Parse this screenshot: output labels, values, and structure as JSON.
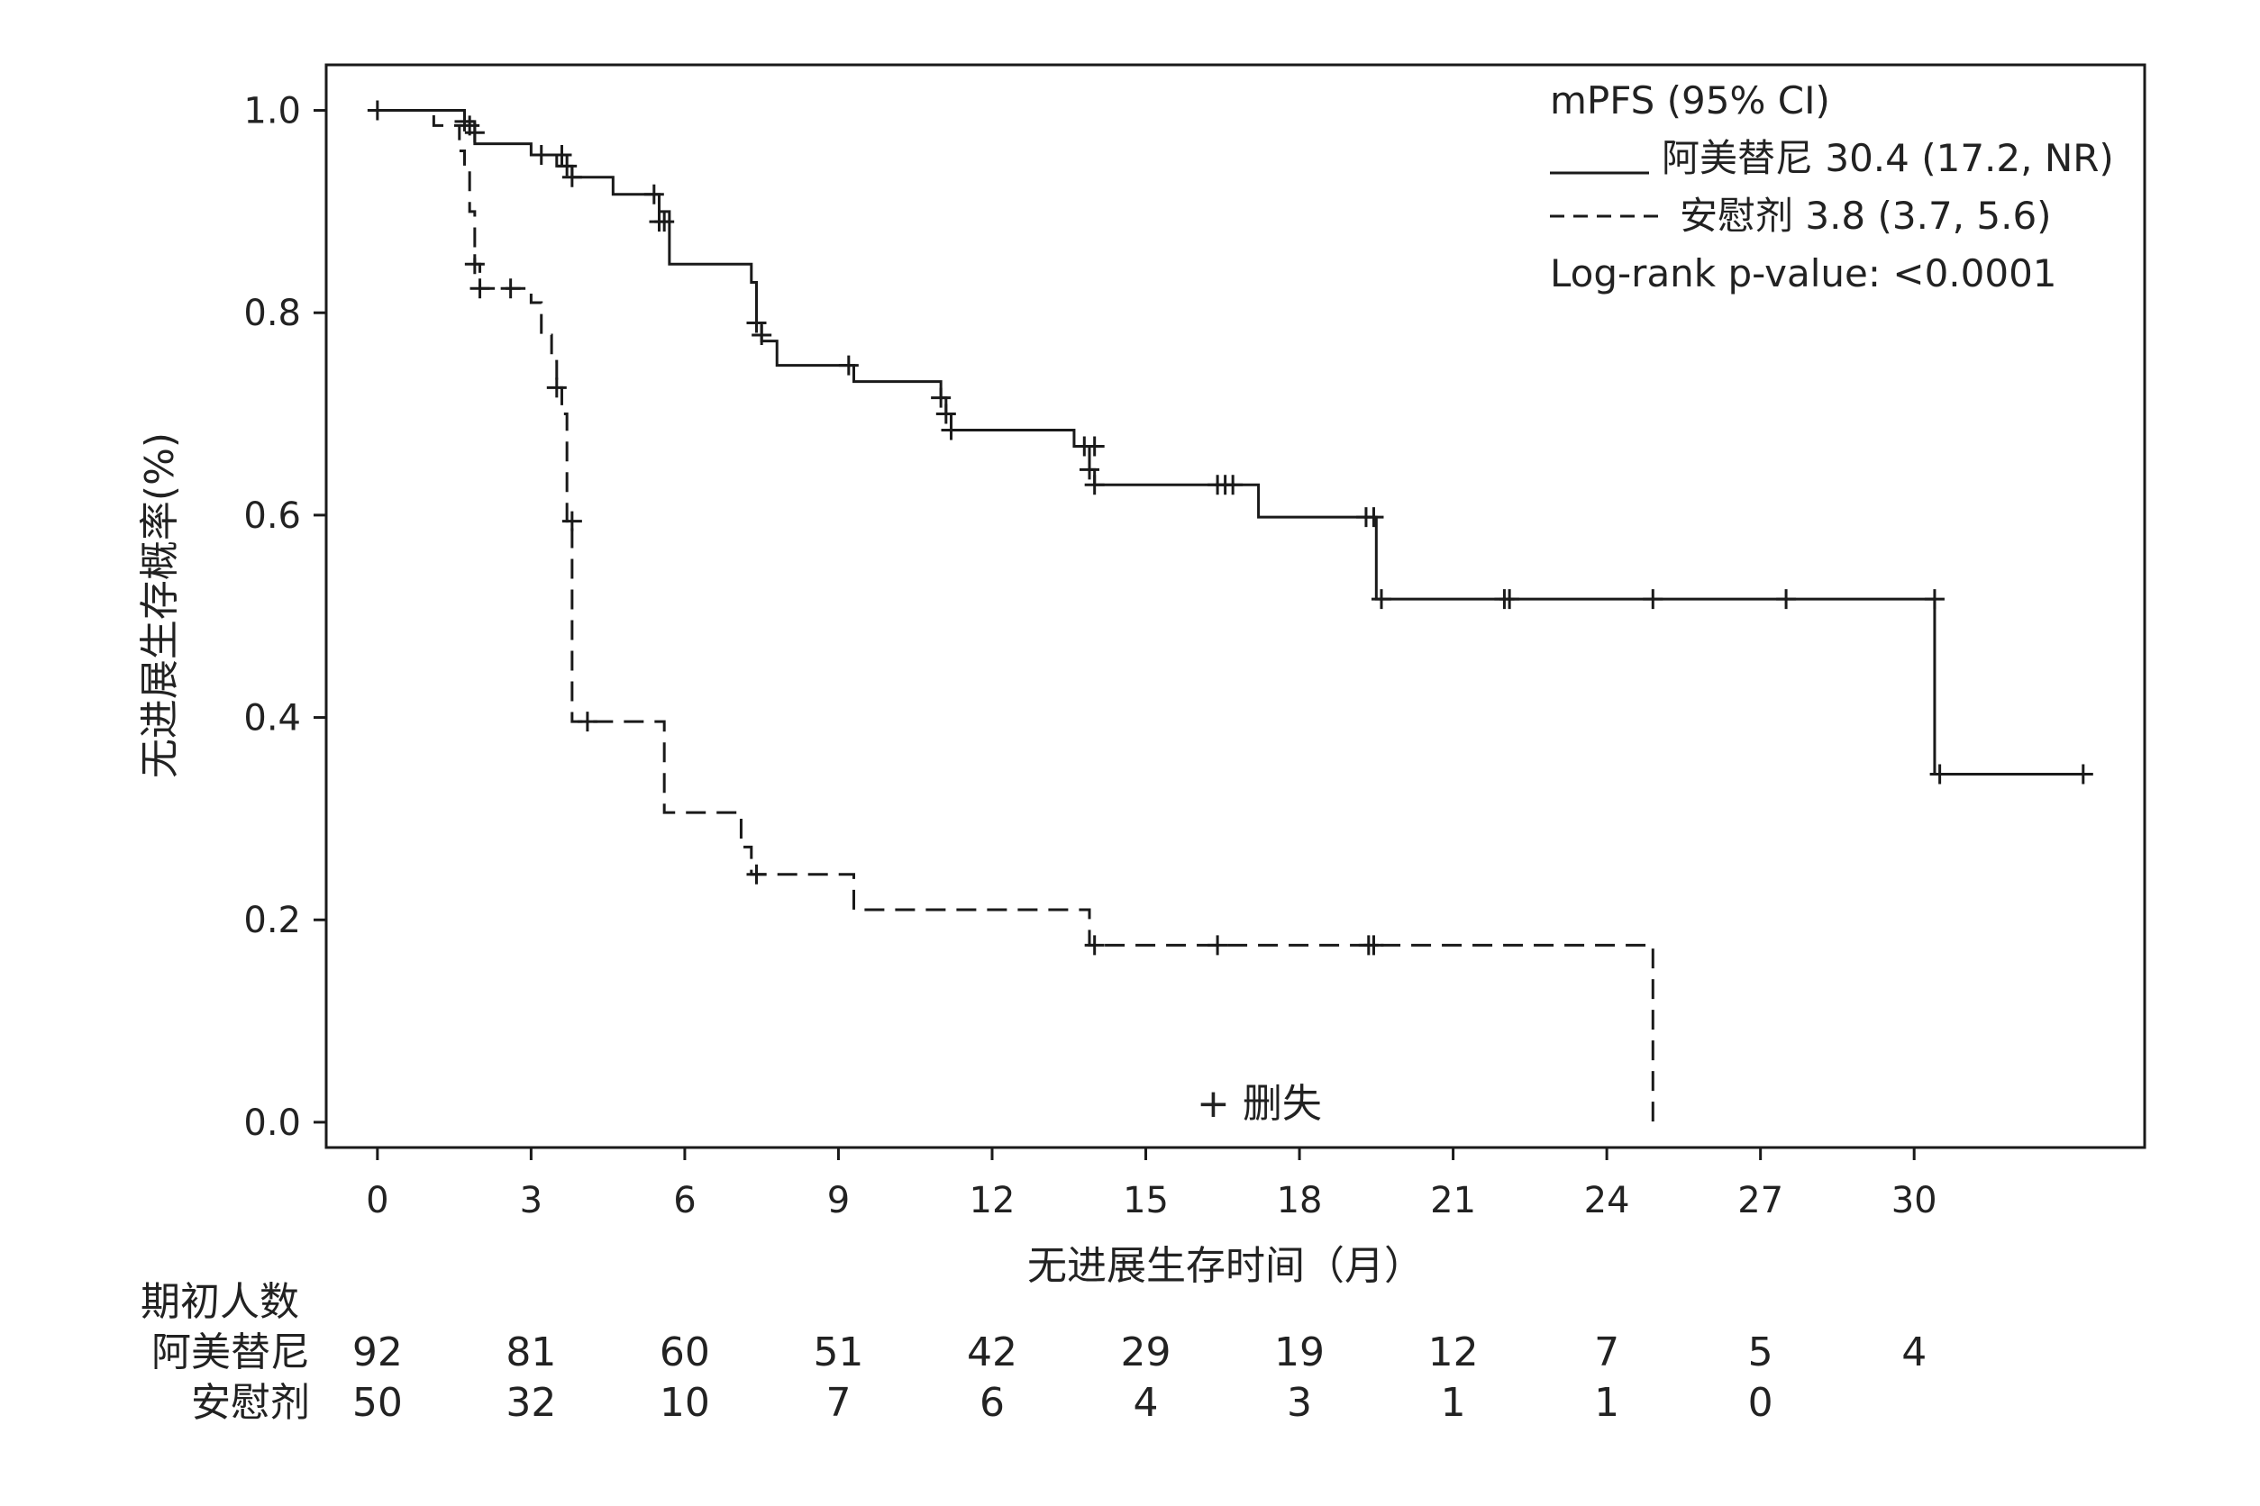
{
  "chart_data": {
    "type": "line",
    "subtype": "kaplan-meier",
    "xlabel": "无进展生存时间（月）",
    "ylabel": "无进展生存概率(%)",
    "xlim": [
      -1,
      34.5
    ],
    "ylim": [
      -0.025,
      1.045
    ],
    "xticks": [
      0,
      3,
      6,
      9,
      12,
      15,
      18,
      21,
      24,
      27,
      30
    ],
    "yticks": [
      "0.0",
      "0.2",
      "0.4",
      "0.6",
      "0.8",
      "1.0"
    ],
    "legend": {
      "title": "mPFS (95% CI)",
      "stat": "Log-rank p-value: <0.0001",
      "position": "top-right"
    },
    "series": [
      {
        "name": "阿美替尼 30.4 (17.2, NR)",
        "style": "solid",
        "color": "#1a1a1a",
        "steps": [
          [
            0,
            1.0
          ],
          [
            1.7,
            0.989
          ],
          [
            1.9,
            0.967
          ],
          [
            3.0,
            0.956
          ],
          [
            3.5,
            0.945
          ],
          [
            3.8,
            0.934
          ],
          [
            4.6,
            0.917
          ],
          [
            5.5,
            0.9
          ],
          [
            5.7,
            0.848
          ],
          [
            7.3,
            0.83
          ],
          [
            7.4,
            0.79
          ],
          [
            7.5,
            0.772
          ],
          [
            7.8,
            0.748
          ],
          [
            9.3,
            0.732
          ],
          [
            11.0,
            0.716
          ],
          [
            11.1,
            0.7
          ],
          [
            11.2,
            0.684
          ],
          [
            13.6,
            0.668
          ],
          [
            13.9,
            0.645
          ],
          [
            14.0,
            0.63
          ],
          [
            17.2,
            0.598
          ],
          [
            19.5,
            0.517
          ],
          [
            30.4,
            0.344
          ]
        ],
        "end_time": 33.3,
        "censors": [
          [
            0.0,
            1.0
          ],
          [
            1.7,
            0.989
          ],
          [
            1.9,
            0.978
          ],
          [
            3.2,
            0.956
          ],
          [
            3.6,
            0.956
          ],
          [
            3.7,
            0.945
          ],
          [
            3.8,
            0.934
          ],
          [
            5.4,
            0.917
          ],
          [
            5.5,
            0.89
          ],
          [
            5.6,
            0.89
          ],
          [
            7.4,
            0.79
          ],
          [
            7.5,
            0.778
          ],
          [
            9.2,
            0.748
          ],
          [
            11.0,
            0.716
          ],
          [
            11.1,
            0.7
          ],
          [
            11.2,
            0.684
          ],
          [
            13.8,
            0.668
          ],
          [
            14.0,
            0.668
          ],
          [
            13.9,
            0.645
          ],
          [
            14.0,
            0.63
          ],
          [
            16.4,
            0.63
          ],
          [
            16.55,
            0.63
          ],
          [
            16.7,
            0.63
          ],
          [
            19.3,
            0.598
          ],
          [
            19.45,
            0.598
          ],
          [
            19.6,
            0.517
          ],
          [
            22.0,
            0.517
          ],
          [
            22.1,
            0.517
          ],
          [
            24.9,
            0.517
          ],
          [
            27.5,
            0.517
          ],
          [
            30.4,
            0.517
          ],
          [
            30.5,
            0.344
          ],
          [
            33.3,
            0.344
          ]
        ]
      },
      {
        "name": "安慰剂 3.8 (3.7, 5.6)",
        "style": "dashed",
        "color": "#1a1a1a",
        "steps": [
          [
            0,
            1.0
          ],
          [
            1.1,
            0.985
          ],
          [
            1.6,
            0.96
          ],
          [
            1.7,
            0.94
          ],
          [
            1.8,
            0.9
          ],
          [
            1.9,
            0.848
          ],
          [
            2.0,
            0.824
          ],
          [
            3.0,
            0.81
          ],
          [
            3.2,
            0.778
          ],
          [
            3.4,
            0.752
          ],
          [
            3.5,
            0.726
          ],
          [
            3.6,
            0.7
          ],
          [
            3.7,
            0.594
          ],
          [
            3.8,
            0.396
          ],
          [
            5.6,
            0.306
          ],
          [
            7.1,
            0.272
          ],
          [
            7.3,
            0.245
          ],
          [
            9.3,
            0.21
          ],
          [
            13.9,
            0.175
          ],
          [
            24.9,
            0.0
          ]
        ],
        "end_time": 24.9,
        "censors": [
          [
            1.8,
            0.985
          ],
          [
            1.9,
            0.848
          ],
          [
            2.0,
            0.824
          ],
          [
            2.6,
            0.824
          ],
          [
            3.5,
            0.726
          ],
          [
            3.8,
            0.594
          ],
          [
            4.1,
            0.396
          ],
          [
            7.4,
            0.245
          ],
          [
            14.0,
            0.175
          ],
          [
            16.4,
            0.175
          ],
          [
            19.35,
            0.175
          ],
          [
            19.45,
            0.175
          ]
        ]
      }
    ],
    "censor_label": "+ 删失",
    "risk_table": {
      "title": "期初人数",
      "rows": [
        {
          "label": "阿美替尼",
          "values": [
            "92",
            "81",
            "60",
            "51",
            "42",
            "29",
            "19",
            "12",
            "7",
            "5",
            "4"
          ]
        },
        {
          "label": "安慰剂",
          "values": [
            "50",
            "32",
            "10",
            "7",
            "6",
            "4",
            "3",
            "1",
            "1",
            "0"
          ]
        }
      ]
    }
  }
}
